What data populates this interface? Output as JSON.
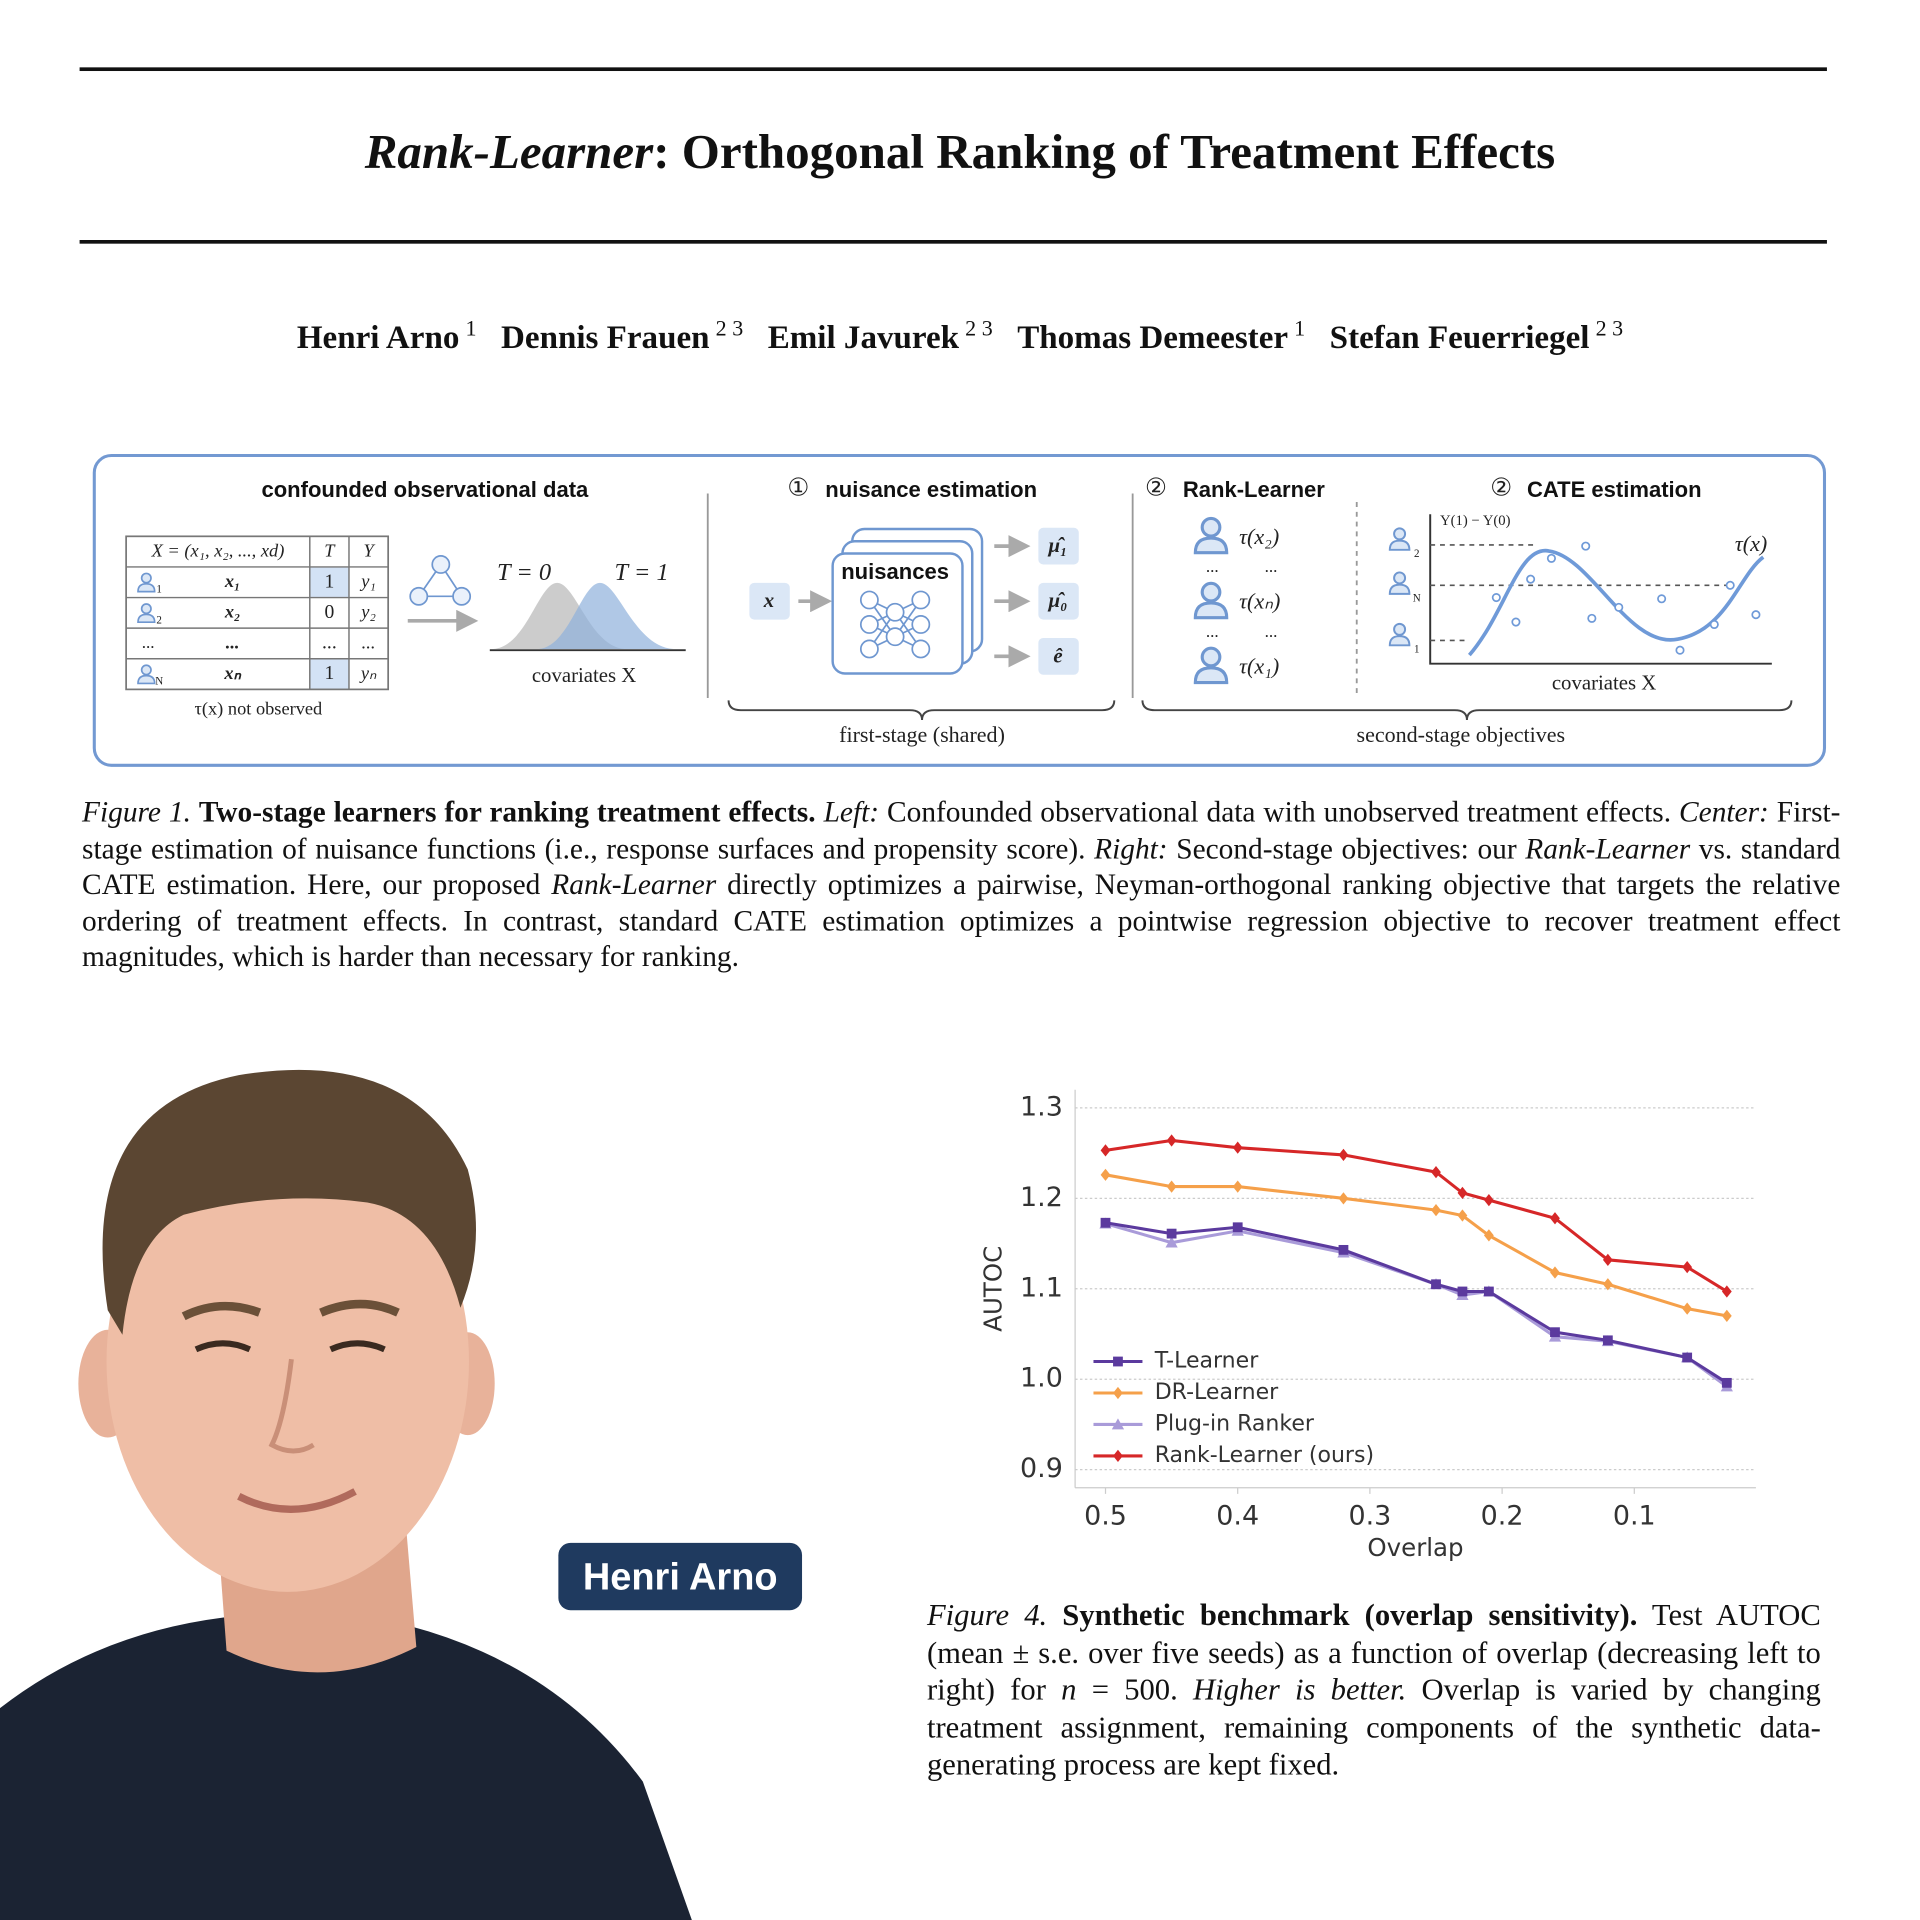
{
  "header": {
    "title_emphasis": "Rank-Learner",
    "title_rest": ": Orthogonal Ranking of Treatment Effects",
    "authors": [
      {
        "name": "Henri Arno",
        "aff": "1"
      },
      {
        "name": "Dennis Frauen",
        "aff": "2 3"
      },
      {
        "name": "Emil Javurek",
        "aff": "2 3"
      },
      {
        "name": "Thomas Demeester",
        "aff": "1"
      },
      {
        "name": "Stefan Feuerriegel",
        "aff": "2 3"
      }
    ]
  },
  "figure1": {
    "data_panel": {
      "title": "confounded observational data",
      "table": {
        "header": [
          "X = (x₁, x₂, ..., xd)",
          "T",
          "Y"
        ],
        "rows": [
          [
            "1",
            "x₁",
            "1",
            "y₁"
          ],
          [
            "2",
            "x₂",
            "0",
            "y₂"
          ],
          [
            "...",
            "...",
            "...",
            "..."
          ],
          [
            "N",
            "xₙ",
            "1",
            "yₙ"
          ]
        ]
      },
      "note": "τ(x) not observed",
      "curve_labels": [
        "T = 0",
        "T = 1"
      ],
      "x_label": "covariates X"
    },
    "nuisance_panel": {
      "step": "①",
      "title": "nuisance estimation",
      "input": "x",
      "card": "nuisances",
      "outputs": [
        "μ̂₁",
        "μ̂₀",
        "ê"
      ]
    },
    "first_stage": "first-stage (shared)",
    "rank_panel": {
      "step": "②",
      "title": "Rank-Learner",
      "items": [
        "τ(x₂)",
        "τ(xₙ)",
        "τ(x₁)"
      ],
      "ellipsis": "..."
    },
    "cate_panel": {
      "step": "②",
      "title": "CATE estimation",
      "y_label": "Y(1) − Y(0)",
      "curve_label": "τ(x)",
      "icon_labels": [
        "2",
        "N",
        "1"
      ],
      "x_label": "covariates X"
    },
    "second_stage": "second-stage objectives"
  },
  "caption1": [
    "Figure 1.",
    "Two-stage learners for ranking treatment effects.",
    "Left:",
    "Confounded observational data with unobserved treatment effects.",
    "Center:",
    "First-stage estimation of nuisance functions (i.e., response surfaces and propensity score).",
    "Right:",
    "Second-stage objectives: our",
    "Rank-Learner",
    "vs. standard CATE estimation. Here, our proposed",
    "Rank-Learner",
    "directly optimizes a pairwise, Neyman-orthogonal ranking objective that targets the relative ordering of treatment effects. In contrast, standard CATE estimation optimizes a pointwise regression objective to recover treatment effect magnitudes, which is harder than necessary for ranking."
  ],
  "badge": "Henri Arno",
  "chart_data": {
    "type": "line",
    "x_label": "Overlap",
    "y_label": "AUTOC",
    "x": [
      0.5,
      0.45,
      0.4,
      0.32,
      0.25,
      0.23,
      0.21,
      0.16,
      0.12,
      0.06,
      0.03
    ],
    "xlim": [
      0.523,
      0.008
    ],
    "xticks": [
      0.5,
      0.4,
      0.3,
      0.2,
      0.1
    ],
    "ylim": [
      0.88,
      1.32
    ],
    "yticks": [
      0.9,
      {
        "value": 1,
        "label": "1.0"
      },
      1.1,
      1.2,
      1.3
    ],
    "grid": true,
    "legend": "lower left",
    "series": [
      {
        "name": "T-Learner",
        "color": "#5b3a9e",
        "marker": "square",
        "values": [
          1.173,
          1.161,
          1.168,
          1.143,
          1.105,
          1.097,
          1.097,
          1.052,
          1.043,
          1.024,
          0.996
        ]
      },
      {
        "name": "DR-Learner",
        "color": "#f5a04a",
        "marker": "diamond",
        "values": [
          1.226,
          1.213,
          1.213,
          1.2,
          1.187,
          1.181,
          1.159,
          1.118,
          1.105,
          1.078,
          1.07
        ]
      },
      {
        "name": "Plug-in Ranker",
        "color": "#a99bd9",
        "marker": "triangle",
        "values": [
          1.172,
          1.151,
          1.164,
          1.14,
          1.105,
          1.093,
          1.097,
          1.047,
          1.042,
          1.024,
          0.992
        ]
      },
      {
        "name": "Rank-Learner (ours)",
        "color": "#d62728",
        "marker": "diamond",
        "values": [
          1.253,
          1.264,
          1.256,
          1.248,
          1.229,
          1.206,
          1.198,
          1.178,
          1.132,
          1.124,
          1.097
        ]
      }
    ]
  },
  "caption4": [
    "Figure 4.",
    "Synthetic benchmark (overlap sensitivity).",
    "Test AUTOC (mean ± s.e. over five seeds) as a function of overlap (decreasing left to right) for",
    "n",
    "= 500.",
    "Higher is better.",
    "Overlap is varied by changing treatment assignment, remaining components of the synthetic data-generating process are kept fixed."
  ]
}
